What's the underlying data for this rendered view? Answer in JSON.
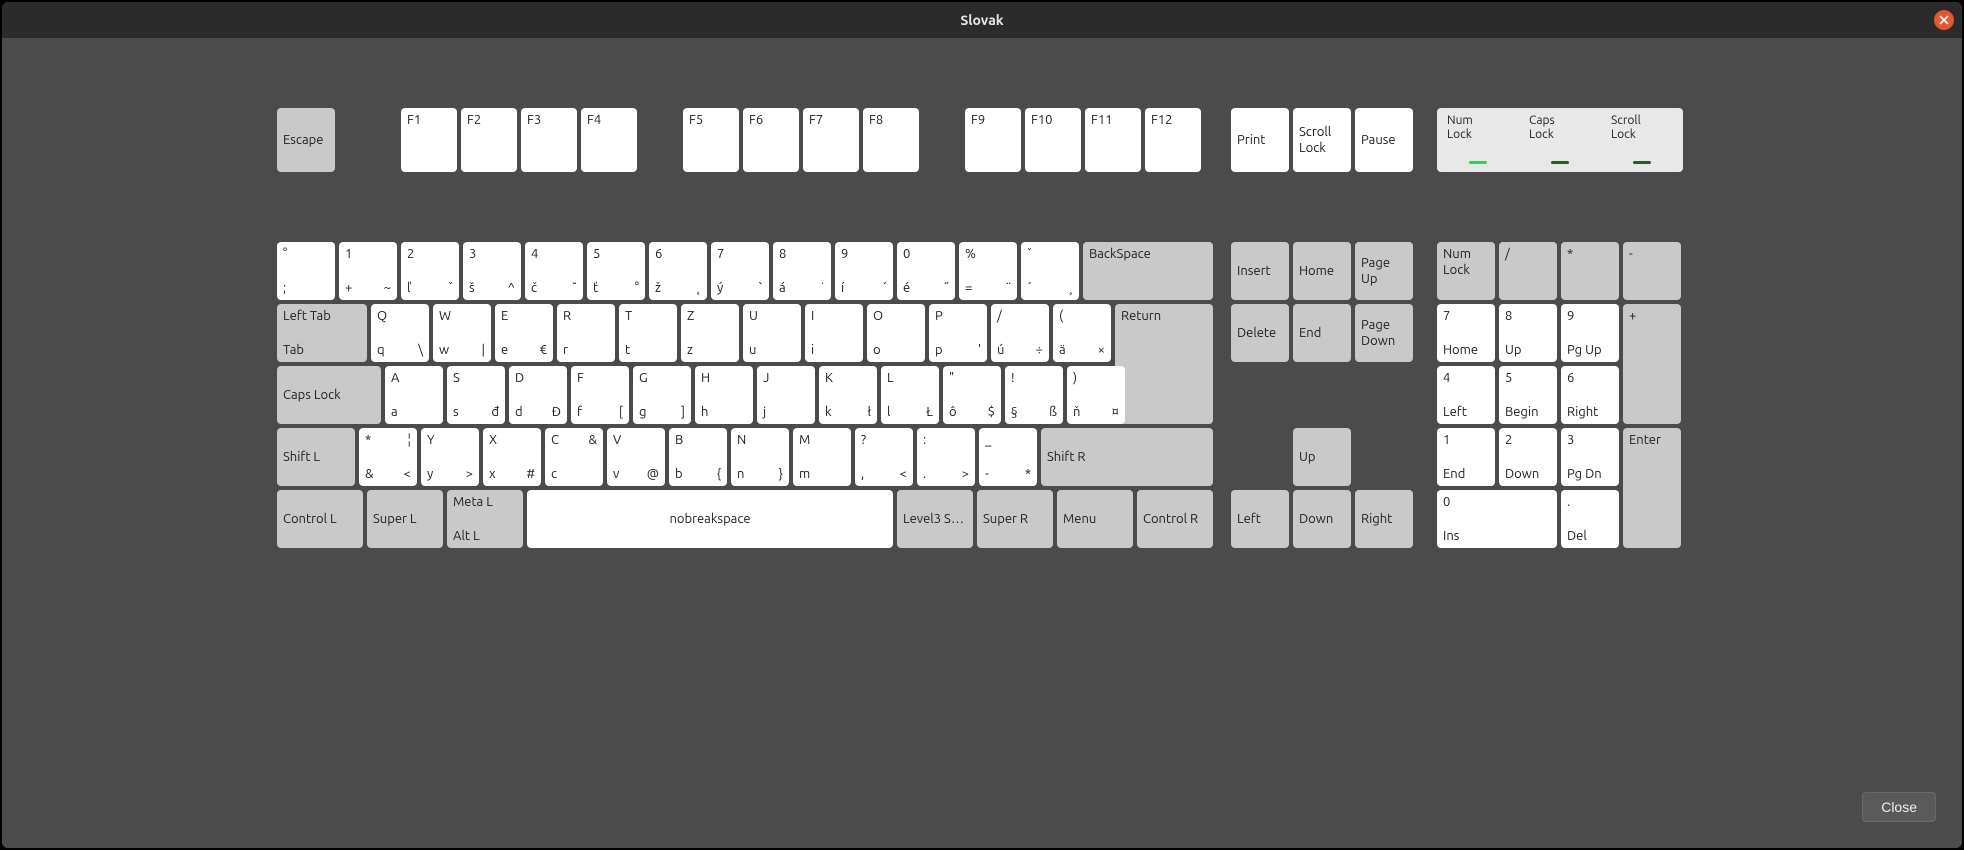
{
  "window": {
    "title": "Slovak"
  },
  "footer": {
    "close_label": "Close"
  },
  "colors": {
    "key_white": "#ffffff",
    "key_mod": "#c9c9c9",
    "led_on": "#34d058",
    "led_off": "#2d5a2d",
    "bg": "#4b4b4b"
  },
  "indicators": [
    {
      "label": "Num\nLock",
      "on": true
    },
    {
      "label": "Caps\nLock",
      "on": false
    },
    {
      "label": "Scroll\nLock",
      "on": false
    }
  ],
  "keys": {
    "escape": "Escape",
    "f": [
      "F1",
      "F2",
      "F3",
      "F4",
      "F5",
      "F6",
      "F7",
      "F8",
      "F9",
      "F10",
      "F11",
      "F12"
    ],
    "print": "Print",
    "scroll_lock": "Scroll\nLock",
    "pause": "Pause",
    "row1": [
      {
        "tl": "°",
        "tr": "",
        "bl": ";",
        "br": ""
      },
      {
        "tl": "1",
        "tr": "",
        "bl": "+",
        "br": "~"
      },
      {
        "tl": "2",
        "tr": "",
        "bl": "ľ",
        "br": "ˇ"
      },
      {
        "tl": "3",
        "tr": "",
        "bl": "š",
        "br": "^"
      },
      {
        "tl": "4",
        "tr": "",
        "bl": "č",
        "br": "˘"
      },
      {
        "tl": "5",
        "tr": "",
        "bl": "ť",
        "br": "°"
      },
      {
        "tl": "6",
        "tr": "",
        "bl": "ž",
        "br": "˛"
      },
      {
        "tl": "7",
        "tr": "",
        "bl": "ý",
        "br": "`"
      },
      {
        "tl": "8",
        "tr": "",
        "bl": "á",
        "br": "˙"
      },
      {
        "tl": "9",
        "tr": "",
        "bl": "í",
        "br": "´"
      },
      {
        "tl": "0",
        "tr": "",
        "bl": "é",
        "br": "˝"
      },
      {
        "tl": "%",
        "tr": "",
        "bl": "=",
        "br": "¨"
      },
      {
        "tl": "ˇ",
        "tr": "",
        "bl": "´",
        "br": "¸"
      }
    ],
    "backspace": "BackSpace",
    "tab": {
      "top": "Left Tab",
      "bottom": "Tab"
    },
    "row2": [
      {
        "tl": "Q",
        "tr": "",
        "bl": "q",
        "br": "\\"
      },
      {
        "tl": "W",
        "tr": "",
        "bl": "w",
        "br": "|"
      },
      {
        "tl": "E",
        "tr": "",
        "bl": "e",
        "br": "€"
      },
      {
        "tl": "R",
        "tr": "",
        "bl": "r",
        "br": ""
      },
      {
        "tl": "T",
        "tr": "",
        "bl": "t",
        "br": ""
      },
      {
        "tl": "Z",
        "tr": "",
        "bl": "z",
        "br": ""
      },
      {
        "tl": "U",
        "tr": "",
        "bl": "u",
        "br": ""
      },
      {
        "tl": "I",
        "tr": "",
        "bl": "i",
        "br": ""
      },
      {
        "tl": "O",
        "tr": "",
        "bl": "o",
        "br": ""
      },
      {
        "tl": "P",
        "tr": "",
        "bl": "p",
        "br": "'"
      },
      {
        "tl": "/",
        "tr": "",
        "bl": "ú",
        "br": "÷"
      },
      {
        "tl": "(",
        "tr": "",
        "bl": "ä",
        "br": "×"
      }
    ],
    "return": "Return",
    "caps": "Caps Lock",
    "row3": [
      {
        "tl": "A",
        "tr": "",
        "bl": "a",
        "br": ""
      },
      {
        "tl": "S",
        "tr": "",
        "bl": "s",
        "br": "đ"
      },
      {
        "tl": "D",
        "tr": "",
        "bl": "d",
        "br": "Đ"
      },
      {
        "tl": "F",
        "tr": "",
        "bl": "f",
        "br": "["
      },
      {
        "tl": "G",
        "tr": "",
        "bl": "g",
        "br": "]"
      },
      {
        "tl": "H",
        "tr": "",
        "bl": "h",
        "br": ""
      },
      {
        "tl": "J",
        "tr": "",
        "bl": "j",
        "br": ""
      },
      {
        "tl": "K",
        "tr": "",
        "bl": "k",
        "br": "ł"
      },
      {
        "tl": "L",
        "tr": "",
        "bl": "l",
        "br": "Ł"
      },
      {
        "tl": "\"",
        "tr": "",
        "bl": "ô",
        "br": "$"
      },
      {
        "tl": "!",
        "tr": "",
        "bl": "§",
        "br": "ß"
      },
      {
        "tl": ")",
        "tr": "",
        "bl": "ň",
        "br": "¤"
      }
    ],
    "shift_l": "Shift L",
    "row4_first": {
      "tl": "*",
      "tr": "¦",
      "bl": "&",
      "br": "<"
    },
    "row4": [
      {
        "tl": "Y",
        "tr": "",
        "bl": "y",
        "br": ">"
      },
      {
        "tl": "X",
        "tr": "",
        "bl": "x",
        "br": "#"
      },
      {
        "tl": "C",
        "tr": "&",
        "bl": "c",
        "br": ""
      },
      {
        "tl": "V",
        "tr": "",
        "bl": "v",
        "br": "@"
      },
      {
        "tl": "B",
        "tr": "",
        "bl": "b",
        "br": "{"
      },
      {
        "tl": "N",
        "tr": "",
        "bl": "n",
        "br": "}"
      },
      {
        "tl": "M",
        "tr": "",
        "bl": "m",
        "br": ""
      },
      {
        "tl": "?",
        "tr": "",
        "bl": ",",
        "br": "<"
      },
      {
        "tl": ":",
        "tr": "",
        "bl": ".",
        "br": ">"
      },
      {
        "tl": "_",
        "tr": "",
        "bl": "-",
        "br": "*"
      }
    ],
    "shift_r": "Shift R",
    "ctrl_l": "Control L",
    "super_l": "Super L",
    "meta_alt": {
      "top": "Meta L",
      "bottom": "Alt L"
    },
    "space": "nobreakspace",
    "level3": "Level3 S…",
    "super_r": "Super R",
    "menu": "Menu",
    "ctrl_r": "Control R",
    "nav": {
      "insert": "Insert",
      "home": "Home",
      "pgup": "Page\nUp",
      "delete": "Delete",
      "end": "End",
      "pgdn": "Page\nDown",
      "up": "Up",
      "left": "Left",
      "down": "Down",
      "right": "Right"
    },
    "numpad": {
      "numlock": "Num\nLock",
      "div": "/",
      "mul": "*",
      "sub": "-",
      "7": {
        "t": "7",
        "b": "Home"
      },
      "8": {
        "t": "8",
        "b": "Up"
      },
      "9": {
        "t": "9",
        "b": "Pg Up"
      },
      "add": "+",
      "4": {
        "t": "4",
        "b": "Left"
      },
      "5": {
        "t": "5",
        "b": "Begin"
      },
      "6": {
        "t": "6",
        "b": "Right"
      },
      "1": {
        "t": "1",
        "b": "End"
      },
      "2": {
        "t": "2",
        "b": "Down"
      },
      "3": {
        "t": "3",
        "b": "Pg Dn"
      },
      "enter": "Enter",
      "0": {
        "t": "0",
        "b": "Ins"
      },
      "dot": {
        "t": ".",
        "b": "Del"
      }
    }
  }
}
